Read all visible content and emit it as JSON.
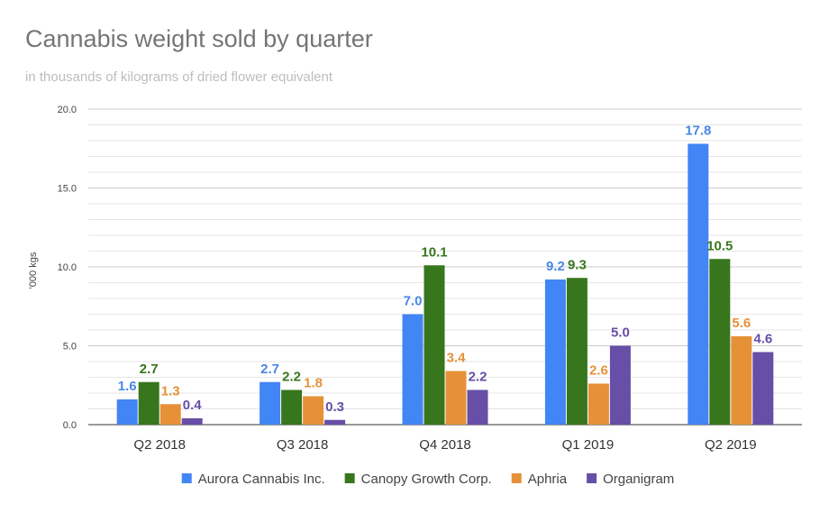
{
  "chart_data": {
    "type": "bar",
    "title": "Cannabis weight sold by quarter",
    "subtitle": "in thousands of kilograms of dried flower equivalent",
    "ylabel": "'000 kgs",
    "xlabel": "",
    "ylim": [
      0,
      20
    ],
    "y_ticks": [
      "0.0",
      "5.0",
      "10.0",
      "15.0",
      "20.0"
    ],
    "y_tick_values": [
      0,
      5,
      10,
      15,
      20
    ],
    "grid": true,
    "legend_position": "bottom",
    "categories": [
      "Q2 2018",
      "Q3 2018",
      "Q4 2018",
      "Q1 2019",
      "Q2 2019"
    ],
    "series": [
      {
        "name": "Aurora Cannabis Inc.",
        "color": "#4285f4",
        "label_color": "#4a86e8",
        "values": [
          1.6,
          2.7,
          7.0,
          9.2,
          17.8
        ],
        "labels": [
          "1.6",
          "2.7",
          "7.0",
          "9.2",
          "17.8"
        ]
      },
      {
        "name": "Canopy Growth Corp.",
        "color": "#38761d",
        "label_color": "#38761d",
        "values": [
          2.7,
          2.2,
          10.1,
          9.3,
          10.5
        ],
        "labels": [
          "2.7",
          "2.2",
          "10.1",
          "9.3",
          "10.5"
        ]
      },
      {
        "name": "Aphria",
        "color": "#e69138",
        "label_color": "#e69138",
        "values": [
          1.3,
          1.8,
          3.4,
          2.6,
          5.6
        ],
        "labels": [
          "1.3",
          "1.8",
          "3.4",
          "2.6",
          "5.6"
        ]
      },
      {
        "name": "Organigram",
        "color": "#674ea7",
        "label_color": "#674ea7",
        "values": [
          0.4,
          0.3,
          2.2,
          5.0,
          4.6
        ],
        "labels": [
          "0.4",
          "0.3",
          "2.2",
          "5.0",
          "4.6"
        ]
      }
    ]
  }
}
